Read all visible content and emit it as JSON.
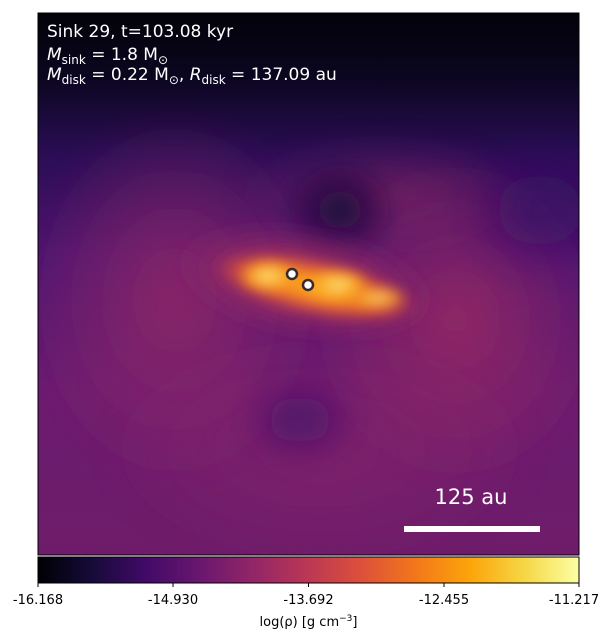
{
  "annotation": {
    "line1": "Sink 29, t=103.08 kyr",
    "line2_prefix": "M",
    "line2_sub": "sink",
    "line2_rest": " = 1.8 M",
    "line2_sun": "⊙",
    "line3_m": "M",
    "line3_m_sub": "disk",
    "line3_m_rest": " = 0.22 M",
    "line3_sun": "⊙",
    "line3_comma": ", ",
    "line3_r": "R",
    "line3_r_sub": "disk",
    "line3_r_rest": " = 137.09 au"
  },
  "scalebar": {
    "label": "125 au"
  },
  "colorbar": {
    "colormap": "inferno",
    "tick_labels": [
      "-16.168",
      "-14.930",
      "-13.692",
      "-12.455",
      "-11.217"
    ],
    "label_prefix": "log(ρ) [g cm",
    "label_exp": "−3",
    "label_suffix": "]"
  },
  "colors": {
    "background_top": "#04030c",
    "disk_core": "#f9a52a",
    "sink_fill": "#ffffff",
    "sink_edge": "#3a2a2a"
  },
  "sinks": [
    "sink-a",
    "sink-b"
  ]
}
